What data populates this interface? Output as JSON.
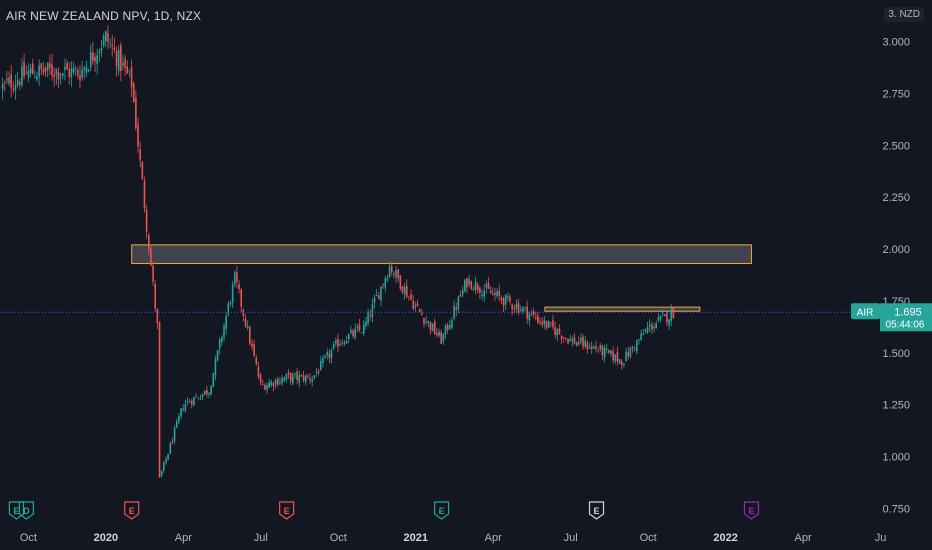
{
  "header": {
    "title": "AIR NEW ZEALAND NPV, 1D, NZX",
    "currency_badge": "3. NZD"
  },
  "price_label": {
    "symbol": "AIR",
    "price": "1.695",
    "countdown": "05:44:06",
    "value": 1.695
  },
  "colors": {
    "background": "#131722",
    "up": "#26a69a",
    "down": "#ef5350",
    "zone_border": "#f0a830",
    "price_line": "#2962ff",
    "price_label_bg": "#26a69a"
  },
  "event_markers": [
    {
      "label": "E",
      "x_label": "Oct 2019",
      "color": "#26a69a"
    },
    {
      "label": "D",
      "x_label": "Oct 2019",
      "color": "#26a69a"
    },
    {
      "label": "E",
      "x_label": "Feb 2020",
      "color": "#ef5350"
    },
    {
      "label": "E",
      "x_label": "Aug 2020",
      "color": "#ef5350"
    },
    {
      "label": "E",
      "x_label": "Feb 2021",
      "color": "#26a69a"
    },
    {
      "label": "E",
      "x_label": "Aug 2021",
      "color": "#d1d4dc"
    },
    {
      "label": "E",
      "x_label": "Feb 2022",
      "color": "#9c27b0"
    }
  ],
  "chart_data": {
    "type": "candlestick",
    "title": "AIR NEW ZEALAND NPV, 1D, NZX",
    "y_axis_position": "right",
    "ylim": [
      0.67,
      3.2
    ],
    "y_ticks": [
      {
        "v": 3.0,
        "label": "3.000"
      },
      {
        "v": 2.75,
        "label": "2.750"
      },
      {
        "v": 2.5,
        "label": "2.500"
      },
      {
        "v": 2.25,
        "label": "2.250"
      },
      {
        "v": 2.0,
        "label": "2.000"
      },
      {
        "v": 1.75,
        "label": "1.750"
      },
      {
        "v": 1.5,
        "label": "1.500"
      },
      {
        "v": 1.25,
        "label": "1.250"
      },
      {
        "v": 1.0,
        "label": "1.000"
      },
      {
        "v": 0.75,
        "label": "0.750"
      }
    ],
    "x_range_months": [
      "Sep 2019",
      "Jul 2022"
    ],
    "x_ticks": [
      {
        "m": "Oct 2019",
        "label": "Oct",
        "bold": false
      },
      {
        "m": "Jan 2020",
        "label": "2020",
        "bold": true
      },
      {
        "m": "Apr 2020",
        "label": "Apr",
        "bold": false
      },
      {
        "m": "Jul 2020",
        "label": "Jul",
        "bold": false
      },
      {
        "m": "Oct 2020",
        "label": "Oct",
        "bold": false
      },
      {
        "m": "Jan 2021",
        "label": "2021",
        "bold": true
      },
      {
        "m": "Apr 2021",
        "label": "Apr",
        "bold": false
      },
      {
        "m": "Jul 2021",
        "label": "Jul",
        "bold": false
      },
      {
        "m": "Oct 2021",
        "label": "Oct",
        "bold": false
      },
      {
        "m": "Jan 2022",
        "label": "2022",
        "bold": true
      },
      {
        "m": "Apr 2022",
        "label": "Apr",
        "bold": false
      },
      {
        "m": "Jul 2022",
        "label": "Ju",
        "bold": false
      }
    ],
    "close_path": [
      [
        "Sep 2019",
        2.78
      ],
      [
        "Oct 2019",
        2.85
      ],
      [
        "Nov 2019",
        2.86
      ],
      [
        "Dec 2019",
        2.85
      ],
      [
        "Jan 2020",
        3.02
      ],
      [
        "Feb 2020",
        2.8
      ],
      [
        "Mar 2020",
        1.62
      ],
      [
        "Mar 2020",
        0.86
      ],
      [
        "Apr 2020",
        1.25
      ],
      [
        "May 2020",
        1.32
      ],
      [
        "Jun 2020",
        1.86
      ],
      [
        "Jul 2020",
        1.34
      ],
      [
        "Aug 2020",
        1.38
      ],
      [
        "Sep 2020",
        1.38
      ],
      [
        "Oct 2020",
        1.55
      ],
      [
        "Nov 2020",
        1.62
      ],
      [
        "Dec 2020",
        1.92
      ],
      [
        "Jan 2021",
        1.72
      ],
      [
        "Feb 2021",
        1.56
      ],
      [
        "Mar 2021",
        1.85
      ],
      [
        "Apr 2021",
        1.78
      ],
      [
        "May 2021",
        1.72
      ],
      [
        "Jun 2021",
        1.64
      ],
      [
        "Jul 2021",
        1.56
      ],
      [
        "Aug 2021",
        1.52
      ],
      [
        "Sep 2021",
        1.46
      ],
      [
        "Oct 2021",
        1.62
      ],
      [
        "Nov 2021",
        1.695
      ]
    ],
    "zones": [
      {
        "from": "Feb 2020",
        "to": "Feb 2022",
        "low": 1.93,
        "high": 2.02
      },
      {
        "from": "Jun 2021",
        "to": "Dec 2021",
        "low": 1.7,
        "high": 1.72
      }
    ],
    "last_price": 1.695
  }
}
